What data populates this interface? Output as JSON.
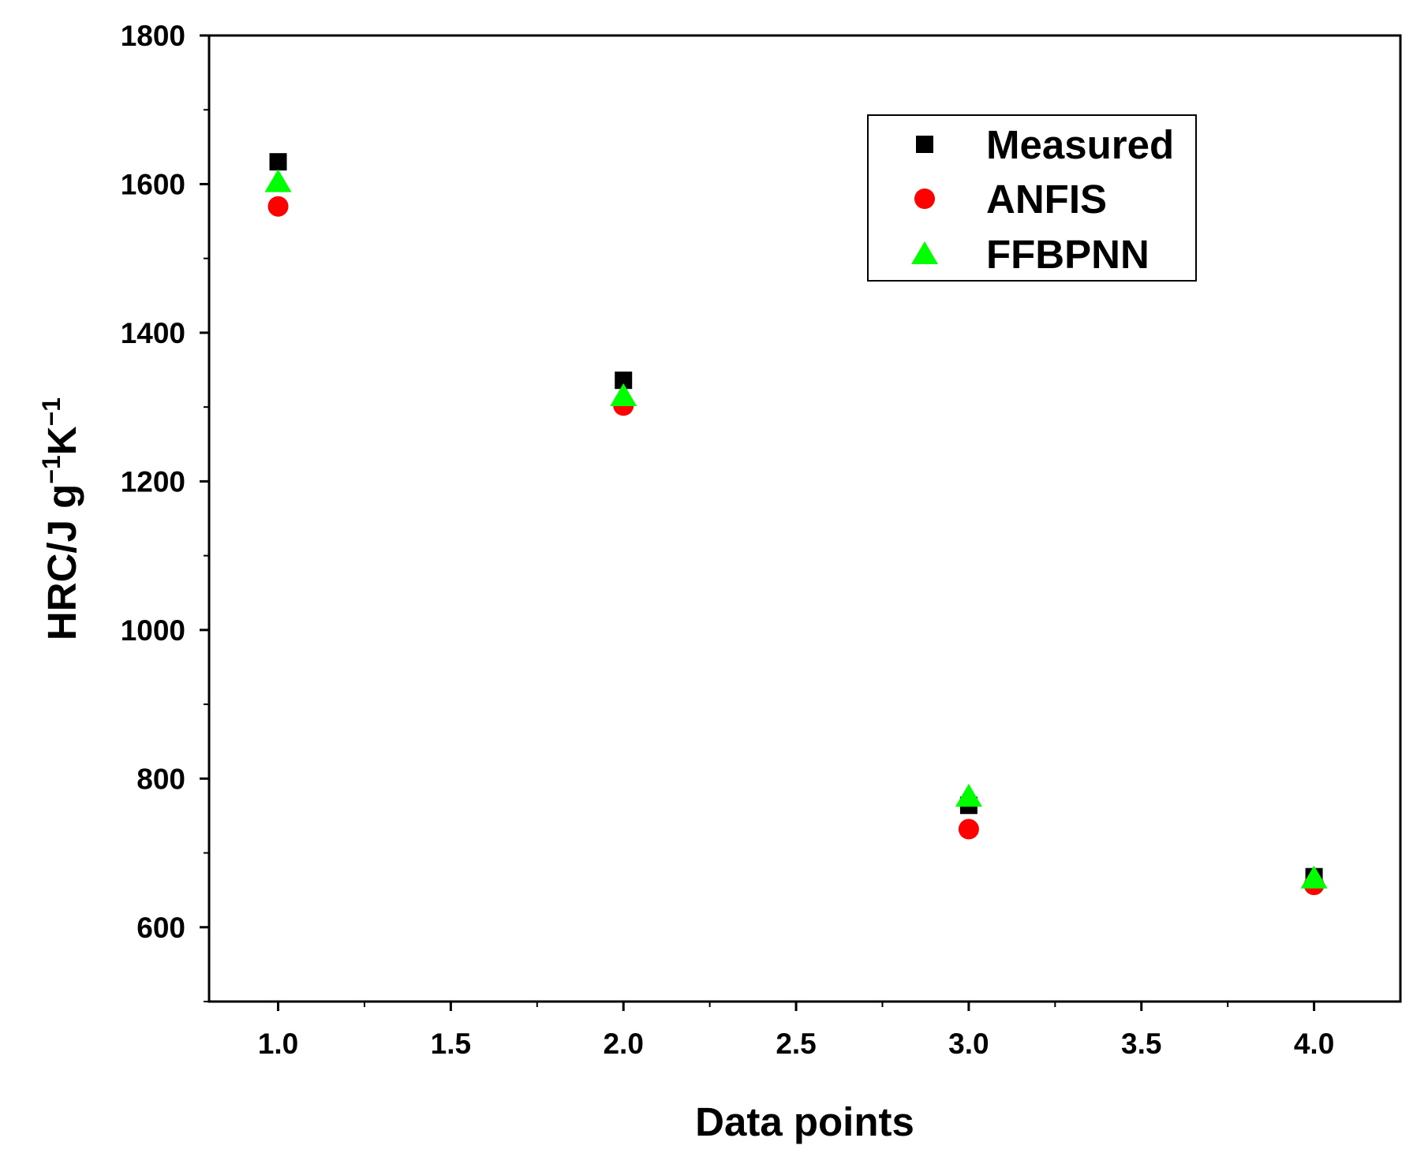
{
  "chart_data": {
    "type": "scatter",
    "xlabel": "Data points",
    "ylabel": {
      "base": "HRC/J g",
      "sup1": "−1",
      "mid": "K",
      "sup2": "−1"
    },
    "xlim": [
      0.8,
      4.25
    ],
    "ylim": [
      500,
      1800
    ],
    "xticks": [
      1.0,
      1.5,
      2.0,
      2.5,
      3.0,
      3.5,
      4.0
    ],
    "xtick_labels": [
      "1.0",
      "1.5",
      "2.0",
      "2.5",
      "3.0",
      "3.5",
      "4.0"
    ],
    "yticks": [
      600,
      800,
      1000,
      1200,
      1400,
      1600,
      1800
    ],
    "ytick_labels": [
      "600",
      "800",
      "1000",
      "1200",
      "1400",
      "1600",
      "1800"
    ],
    "grid": false,
    "legend_position": "top-right",
    "series": [
      {
        "name": "Measured",
        "marker": "square",
        "color": "#000000",
        "x": [
          1,
          2,
          3,
          4
        ],
        "y": [
          1630,
          1336,
          764,
          668
        ]
      },
      {
        "name": "ANFIS",
        "marker": "circle",
        "color": "#ff0000",
        "x": [
          1,
          2,
          3,
          4
        ],
        "y": [
          1570,
          1302,
          732,
          657
        ]
      },
      {
        "name": "FFBPNN",
        "marker": "triangle",
        "color": "#00ff00",
        "x": [
          1,
          2,
          3,
          4
        ],
        "y": [
          1603,
          1315,
          776,
          666
        ]
      }
    ]
  }
}
